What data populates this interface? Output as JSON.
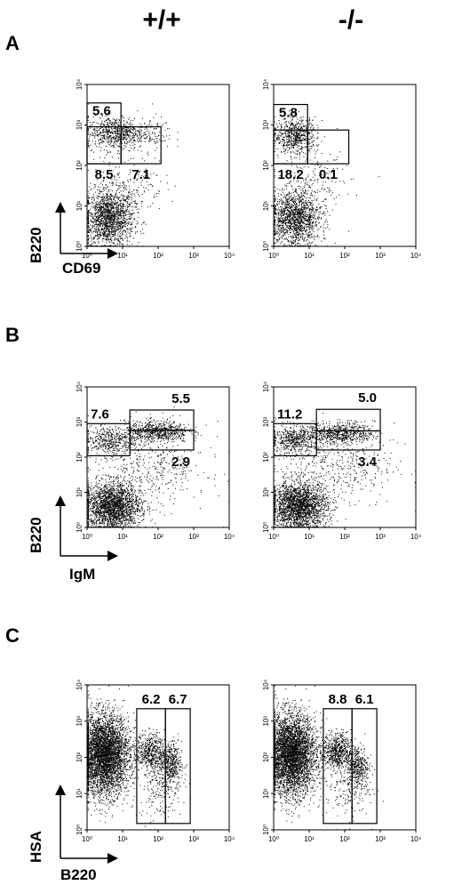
{
  "column_headers": [
    "+/+",
    "-/-"
  ],
  "panel_letters": [
    "A",
    "B",
    "C"
  ],
  "axis_tick_labels": [
    "10⁰",
    "10¹",
    "10²",
    "10³",
    "10⁴"
  ],
  "chart_data": [
    {
      "type": "scatter",
      "panel": "A",
      "genotype": "+/+",
      "xlabel": "CD69",
      "ylabel": "B220",
      "x_scale": "log",
      "y_scale": "log",
      "xlim": [
        1,
        10000
      ],
      "ylim": [
        1,
        10000
      ],
      "populations": [
        {
          "cx": 4,
          "cy": 5,
          "sx": 0.35,
          "sy": 0.35,
          "n": 1600
        },
        {
          "cx": 6,
          "cy": 650,
          "sx": 0.4,
          "sy": 0.2,
          "n": 650
        },
        {
          "cx": 50,
          "cy": 650,
          "sx": 0.35,
          "sy": 0.2,
          "n": 120
        },
        {
          "cx": 15,
          "cy": 40,
          "sx": 0.5,
          "sy": 0.4,
          "n": 200
        }
      ],
      "gates": [
        {
          "label": "5.6",
          "x": [
            1,
            9
          ],
          "y": [
            110,
            3500
          ]
        },
        {
          "label": "8.5",
          "x": [
            1,
            9
          ],
          "y": [
            110,
            900
          ]
        },
        {
          "label": "7.1",
          "x": [
            9,
            120
          ],
          "y": [
            110,
            900
          ]
        }
      ]
    },
    {
      "type": "scatter",
      "panel": "A",
      "genotype": "-/-",
      "xlabel": "CD69",
      "ylabel": "B220",
      "x_scale": "log",
      "y_scale": "log",
      "xlim": [
        1,
        10000
      ],
      "ylim": [
        1,
        10000
      ],
      "populations": [
        {
          "cx": 4,
          "cy": 5,
          "sx": 0.35,
          "sy": 0.35,
          "n": 1500
        },
        {
          "cx": 4,
          "cy": 550,
          "sx": 0.3,
          "sy": 0.22,
          "n": 650
        },
        {
          "cx": 15,
          "cy": 40,
          "sx": 0.5,
          "sy": 0.4,
          "n": 160
        }
      ],
      "gates": [
        {
          "label": "5.8",
          "x": [
            1,
            9
          ],
          "y": [
            110,
            3200
          ]
        },
        {
          "label": "18.2",
          "x": [
            1,
            9
          ],
          "y": [
            110,
            750
          ]
        },
        {
          "label": "0.1",
          "x": [
            9,
            130
          ],
          "y": [
            110,
            750
          ]
        }
      ]
    },
    {
      "type": "scatter",
      "panel": "B",
      "genotype": "+/+",
      "xlabel": "IgM",
      "ylabel": "B220",
      "x_scale": "log",
      "y_scale": "log",
      "xlim": [
        1,
        10000
      ],
      "ylim": [
        1,
        10000
      ],
      "populations": [
        {
          "cx": 5,
          "cy": 4,
          "sx": 0.4,
          "sy": 0.35,
          "n": 2200
        },
        {
          "cx": 4,
          "cy": 300,
          "sx": 0.35,
          "sy": 0.2,
          "n": 420
        },
        {
          "cx": 90,
          "cy": 550,
          "sx": 0.45,
          "sy": 0.15,
          "n": 650
        },
        {
          "cx": 60,
          "cy": 60,
          "sx": 0.8,
          "sy": 0.6,
          "n": 450
        }
      ],
      "gates": [
        {
          "label": "7.6",
          "x": [
            1,
            16
          ],
          "y": [
            110,
            900
          ]
        },
        {
          "label": "5.5",
          "x": [
            16,
            1000
          ],
          "y": [
            580,
            2200
          ]
        },
        {
          "label": "2.9",
          "x": [
            16,
            1000
          ],
          "y": [
            160,
            580
          ]
        }
      ]
    },
    {
      "type": "scatter",
      "panel": "B",
      "genotype": "-/-",
      "xlabel": "IgM",
      "ylabel": "B220",
      "x_scale": "log",
      "y_scale": "log",
      "xlim": [
        1,
        10000
      ],
      "ylim": [
        1,
        10000
      ],
      "populations": [
        {
          "cx": 5,
          "cy": 4,
          "sx": 0.4,
          "sy": 0.35,
          "n": 2200
        },
        {
          "cx": 4,
          "cy": 320,
          "sx": 0.35,
          "sy": 0.2,
          "n": 550
        },
        {
          "cx": 80,
          "cy": 500,
          "sx": 0.45,
          "sy": 0.15,
          "n": 600
        },
        {
          "cx": 60,
          "cy": 60,
          "sx": 0.8,
          "sy": 0.6,
          "n": 450
        }
      ],
      "gates": [
        {
          "label": "11.2",
          "x": [
            1,
            16
          ],
          "y": [
            110,
            900
          ]
        },
        {
          "label": "5.0",
          "x": [
            16,
            1000
          ],
          "y": [
            560,
            2300
          ]
        },
        {
          "label": "3.4",
          "x": [
            16,
            1000
          ],
          "y": [
            160,
            560
          ]
        }
      ]
    },
    {
      "type": "scatter",
      "panel": "C",
      "genotype": "+/+",
      "xlabel": "B220",
      "ylabel": "HSA",
      "x_scale": "log",
      "y_scale": "log",
      "xlim": [
        1,
        10000
      ],
      "ylim": [
        1,
        10000
      ],
      "populations": [
        {
          "cx": 3,
          "cy": 120,
          "sx": 0.35,
          "sy": 0.55,
          "n": 4200
        },
        {
          "cx": 60,
          "cy": 150,
          "sx": 0.2,
          "sy": 0.25,
          "n": 500
        },
        {
          "cx": 220,
          "cy": 70,
          "sx": 0.15,
          "sy": 0.3,
          "n": 400
        },
        {
          "cx": 120,
          "cy": 20,
          "sx": 0.3,
          "sy": 0.5,
          "n": 250
        }
      ],
      "gates": [
        {
          "label": "6.2",
          "x": [
            25,
            160
          ],
          "y": [
            1.5,
            2200
          ]
        },
        {
          "label": "6.7",
          "x": [
            160,
            800
          ],
          "y": [
            1.5,
            2200
          ]
        }
      ]
    },
    {
      "type": "scatter",
      "panel": "C",
      "genotype": "-/-",
      "xlabel": "B220",
      "ylabel": "HSA",
      "x_scale": "log",
      "y_scale": "log",
      "xlim": [
        1,
        10000
      ],
      "ylim": [
        1,
        10000
      ],
      "populations": [
        {
          "cx": 3,
          "cy": 120,
          "sx": 0.35,
          "sy": 0.55,
          "n": 4200
        },
        {
          "cx": 60,
          "cy": 150,
          "sx": 0.2,
          "sy": 0.25,
          "n": 600
        },
        {
          "cx": 230,
          "cy": 60,
          "sx": 0.15,
          "sy": 0.3,
          "n": 350
        },
        {
          "cx": 120,
          "cy": 20,
          "sx": 0.3,
          "sy": 0.5,
          "n": 250
        }
      ],
      "gates": [
        {
          "label": "8.8",
          "x": [
            25,
            160
          ],
          "y": [
            1.5,
            2200
          ]
        },
        {
          "label": "6.1",
          "x": [
            160,
            800
          ],
          "y": [
            1.5,
            2200
          ]
        }
      ]
    }
  ]
}
